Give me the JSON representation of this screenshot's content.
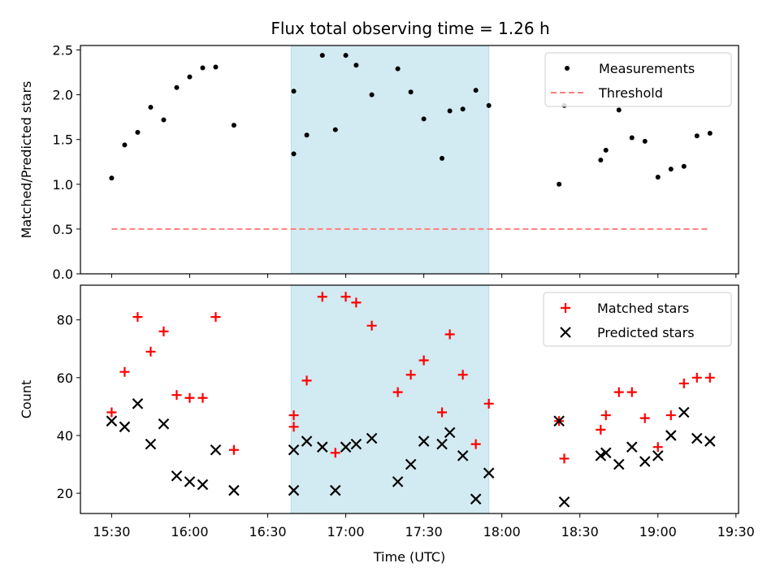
{
  "title": "Flux total observing time = 1.26 h",
  "chart_data": [
    {
      "type": "scatter",
      "panel": "top",
      "title": "Flux total observing time = 1.26 h",
      "xlabel": "",
      "ylabel": "Matched/Predicted stars",
      "xlim": [
        "15:18",
        "19:31"
      ],
      "ylim": [
        0,
        2.55
      ],
      "yticks": [
        0.0,
        0.5,
        1.0,
        1.5,
        2.0,
        2.5
      ],
      "ytick_labels": [
        "0.0",
        "0.5",
        "1.0",
        "1.5",
        "2.0",
        "2.5"
      ],
      "shaded_region": {
        "x_start": "16:39",
        "x_end": "17:55",
        "color": "#add8e6"
      },
      "legend_position": "top-right",
      "legend": [
        "Measurements",
        "Threshold"
      ],
      "series": [
        {
          "name": "Measurements",
          "marker": "dot",
          "color": "#000000",
          "x": [
            "15:30",
            "15:35",
            "15:40",
            "15:45",
            "15:50",
            "15:55",
            "16:00",
            "16:05",
            "16:10",
            "16:17",
            "16:40",
            "16:40",
            "16:45",
            "16:51",
            "16:56",
            "17:00",
            "17:04",
            "17:10",
            "17:20",
            "17:25",
            "17:30",
            "17:37",
            "17:40",
            "17:45",
            "17:50",
            "17:55",
            "18:22",
            "18:24",
            "18:38",
            "18:40",
            "18:45",
            "18:50",
            "18:55",
            "19:00",
            "19:05",
            "19:10",
            "19:15",
            "19:20"
          ],
          "y": [
            1.07,
            1.44,
            1.58,
            1.86,
            1.72,
            2.08,
            2.2,
            2.3,
            2.31,
            1.66,
            2.04,
            1.34,
            1.55,
            2.44,
            1.61,
            2.44,
            2.33,
            2.0,
            2.29,
            2.03,
            1.73,
            1.29,
            1.82,
            1.84,
            2.05,
            1.88,
            1.0,
            1.88,
            1.27,
            1.38,
            1.83,
            1.52,
            1.48,
            1.08,
            1.17,
            1.2,
            1.54,
            1.57
          ]
        },
        {
          "name": "Threshold",
          "style": "dashed",
          "color": "#ff7f7f",
          "x": [
            "15:30",
            "19:20"
          ],
          "y": [
            0.5,
            0.5
          ]
        }
      ]
    },
    {
      "type": "scatter",
      "panel": "bottom",
      "xlabel": "Time (UTC)",
      "ylabel": "Count",
      "xlim": [
        "15:18",
        "19:31"
      ],
      "ylim": [
        13,
        92
      ],
      "yticks": [
        20,
        40,
        60,
        80
      ],
      "ytick_labels": [
        "20",
        "40",
        "60",
        "80"
      ],
      "xticks": [
        "15:30",
        "16:00",
        "16:30",
        "17:00",
        "17:30",
        "18:00",
        "18:30",
        "19:00",
        "19:30"
      ],
      "xtick_labels": [
        "15:30",
        "16:00",
        "16:30",
        "17:00",
        "17:30",
        "18:00",
        "18:30",
        "19:00",
        "19:30"
      ],
      "shaded_region": {
        "x_start": "16:39",
        "x_end": "17:55",
        "color": "#add8e6"
      },
      "legend_position": "top-right",
      "legend": [
        "Matched stars",
        "Predicted stars"
      ],
      "series": [
        {
          "name": "Matched stars",
          "marker": "plus",
          "color": "#ff0000",
          "x": [
            "15:30",
            "15:35",
            "15:40",
            "15:45",
            "15:50",
            "15:55",
            "16:00",
            "16:05",
            "16:10",
            "16:17",
            "16:40",
            "16:40",
            "16:45",
            "16:51",
            "16:56",
            "17:00",
            "17:04",
            "17:10",
            "17:20",
            "17:25",
            "17:30",
            "17:37",
            "17:40",
            "17:45",
            "17:50",
            "17:55",
            "18:22",
            "18:24",
            "18:38",
            "18:40",
            "18:45",
            "18:50",
            "18:55",
            "19:00",
            "19:05",
            "19:10",
            "19:15",
            "19:20"
          ],
          "y": [
            48,
            62,
            81,
            69,
            76,
            54,
            53,
            53,
            81,
            35,
            47,
            43,
            59,
            88,
            34,
            88,
            86,
            78,
            55,
            61,
            66,
            48,
            75,
            61,
            37,
            51,
            45,
            32,
            42,
            47,
            55,
            55,
            46,
            36,
            47,
            58,
            60,
            60
          ]
        },
        {
          "name": "Predicted stars",
          "marker": "x",
          "color": "#000000",
          "x": [
            "15:30",
            "15:35",
            "15:40",
            "15:45",
            "15:50",
            "15:55",
            "16:00",
            "16:05",
            "16:10",
            "16:17",
            "16:40",
            "16:40",
            "16:45",
            "16:51",
            "16:56",
            "17:00",
            "17:04",
            "17:10",
            "17:20",
            "17:25",
            "17:30",
            "17:37",
            "17:40",
            "17:45",
            "17:50",
            "17:55",
            "18:22",
            "18:24",
            "18:38",
            "18:40",
            "18:45",
            "18:50",
            "18:55",
            "19:00",
            "19:05",
            "19:10",
            "19:15",
            "19:20"
          ],
          "y": [
            45,
            43,
            51,
            37,
            44,
            26,
            24,
            23,
            35,
            21,
            35,
            21,
            38,
            36,
            21,
            36,
            37,
            39,
            24,
            30,
            38,
            37,
            41,
            33,
            18,
            27,
            45,
            17,
            33,
            34,
            30,
            36,
            31,
            33,
            40,
            48,
            39,
            38
          ]
        }
      ]
    }
  ]
}
